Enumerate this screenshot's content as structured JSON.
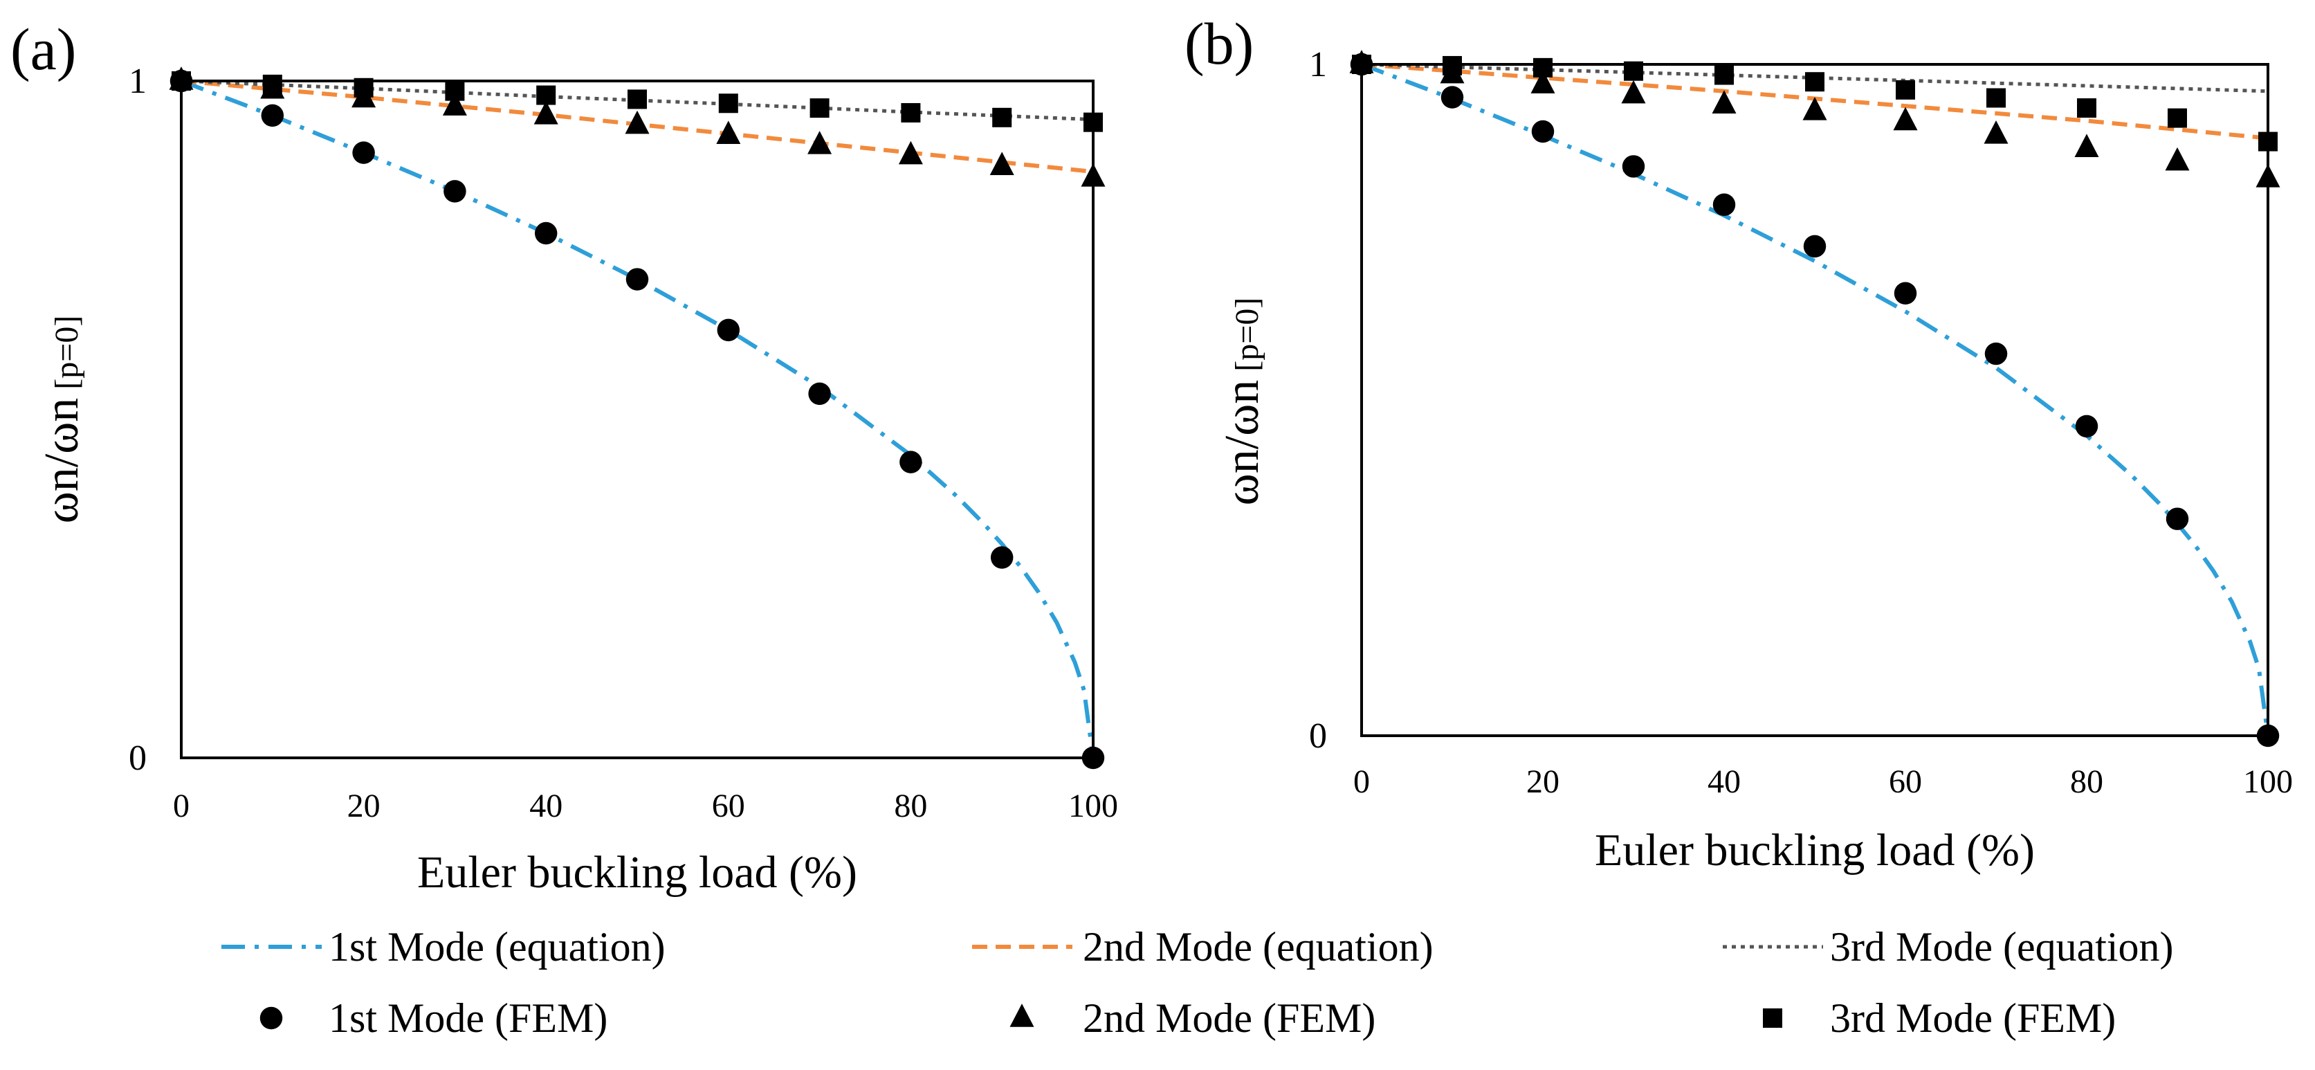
{
  "chart_data": [
    {
      "panel_label": "(a)",
      "type": "line",
      "xlabel": "Euler buckling load (%)",
      "ylabel": {
        "main": "ωn/ωn",
        "sub": "[p=0]"
      },
      "xlim": [
        0,
        100
      ],
      "ylim": [
        0,
        1
      ],
      "xticks": [
        0,
        20,
        40,
        60,
        80,
        100
      ],
      "yticks": [
        0,
        1
      ],
      "lines": [
        {
          "name": "1st Mode (equation)",
          "color": "#2e9fd8",
          "dash": "dashdot",
          "x": [
            0,
            10,
            20,
            30,
            40,
            50,
            60,
            70,
            80,
            85,
            88,
            90,
            92,
            94,
            96,
            98,
            99,
            100
          ],
          "y": [
            1,
            0.949,
            0.894,
            0.837,
            0.775,
            0.707,
            0.632,
            0.548,
            0.447,
            0.387,
            0.346,
            0.316,
            0.283,
            0.245,
            0.2,
            0.141,
            0.1,
            0
          ]
        },
        {
          "name": "2nd Mode (equation)",
          "color": "#f28a3c",
          "dash": "dashed",
          "x": [
            0,
            20,
            40,
            60,
            80,
            100
          ],
          "y": [
            1,
            0.976,
            0.95,
            0.922,
            0.894,
            0.866
          ]
        },
        {
          "name": "3rd Mode (equation)",
          "color": "#555555",
          "dash": "dotted",
          "x": [
            0,
            20,
            40,
            60,
            80,
            100
          ],
          "y": [
            1,
            0.989,
            0.977,
            0.966,
            0.954,
            0.943
          ]
        }
      ],
      "points": [
        {
          "name": "1st Mode (FEM)",
          "marker": "circle",
          "x": [
            0,
            10,
            20,
            30,
            40,
            50,
            60,
            70,
            80,
            90,
            100
          ],
          "y": [
            1,
            0.949,
            0.894,
            0.837,
            0.775,
            0.707,
            0.632,
            0.538,
            0.437,
            0.296,
            0
          ]
        },
        {
          "name": "2nd Mode (FEM)",
          "marker": "triangle",
          "x": [
            0,
            10,
            20,
            30,
            40,
            50,
            60,
            70,
            80,
            90,
            100
          ],
          "y": [
            1,
            0.987,
            0.974,
            0.962,
            0.949,
            0.935,
            0.92,
            0.905,
            0.89,
            0.874,
            0.857
          ]
        },
        {
          "name": "3rd Mode (FEM)",
          "marker": "square",
          "x": [
            0,
            10,
            20,
            30,
            40,
            50,
            60,
            70,
            80,
            90,
            100
          ],
          "y": [
            1,
            0.995,
            0.99,
            0.985,
            0.979,
            0.973,
            0.967,
            0.96,
            0.953,
            0.946,
            0.939
          ]
        }
      ]
    },
    {
      "panel_label": "(b)",
      "type": "line",
      "xlabel": "Euler buckling load (%)",
      "ylabel": {
        "main": "ωn/ωn",
        "sub": "[p=0]"
      },
      "xlim": [
        0,
        100
      ],
      "ylim": [
        0,
        1
      ],
      "xticks": [
        0,
        20,
        40,
        60,
        80,
        100
      ],
      "yticks": [
        0,
        1
      ],
      "lines": [
        {
          "name": "1st Mode (equation)",
          "color": "#2e9fd8",
          "dash": "dashdot",
          "x": [
            0,
            10,
            20,
            30,
            40,
            50,
            60,
            70,
            80,
            85,
            88,
            90,
            92,
            94,
            96,
            98,
            99,
            100
          ],
          "y": [
            1,
            0.949,
            0.894,
            0.837,
            0.775,
            0.707,
            0.632,
            0.548,
            0.447,
            0.387,
            0.346,
            0.316,
            0.283,
            0.245,
            0.2,
            0.141,
            0.1,
            0
          ]
        },
        {
          "name": "2nd Mode (equation)",
          "color": "#f28a3c",
          "dash": "dashed",
          "x": [
            0,
            20,
            40,
            60,
            80,
            100
          ],
          "y": [
            1,
            0.98,
            0.96,
            0.938,
            0.916,
            0.89
          ]
        },
        {
          "name": "3rd Mode (equation)",
          "color": "#555555",
          "dash": "dotted",
          "x": [
            0,
            20,
            40,
            60,
            80,
            100
          ],
          "y": [
            1,
            0.992,
            0.984,
            0.976,
            0.968,
            0.96
          ]
        }
      ],
      "points": [
        {
          "name": "1st Mode (FEM)",
          "marker": "circle",
          "x": [
            0,
            10,
            20,
            30,
            40,
            50,
            60,
            70,
            80,
            90,
            100
          ],
          "y": [
            1,
            0.951,
            0.9,
            0.848,
            0.791,
            0.729,
            0.659,
            0.569,
            0.461,
            0.323,
            0
          ]
        },
        {
          "name": "2nd Mode (FEM)",
          "marker": "triangle",
          "x": [
            0,
            10,
            20,
            30,
            40,
            50,
            60,
            70,
            80,
            90,
            100
          ],
          "y": [
            1,
            0.985,
            0.97,
            0.955,
            0.94,
            0.93,
            0.915,
            0.895,
            0.875,
            0.855,
            0.83
          ]
        },
        {
          "name": "3rd Mode (FEM)",
          "marker": "square",
          "x": [
            0,
            10,
            20,
            30,
            40,
            50,
            60,
            70,
            80,
            90,
            100
          ],
          "y": [
            1,
            0.998,
            0.995,
            0.99,
            0.984,
            0.974,
            0.962,
            0.95,
            0.935,
            0.92,
            0.885
          ]
        }
      ]
    }
  ],
  "legend": {
    "items": [
      {
        "label": "1st Mode (equation)",
        "kind": "line",
        "color": "#2e9fd8",
        "dash": "dashdot"
      },
      {
        "label": "2nd Mode (equation)",
        "kind": "line",
        "color": "#f28a3c",
        "dash": "dashed"
      },
      {
        "label": "3rd Mode (equation)",
        "kind": "line",
        "color": "#555555",
        "dash": "dotted"
      },
      {
        "label": "1st Mode (FEM)",
        "kind": "marker",
        "marker": "circle"
      },
      {
        "label": "2nd Mode (FEM)",
        "kind": "marker",
        "marker": "triangle"
      },
      {
        "label": "3rd Mode (FEM)",
        "kind": "marker",
        "marker": "square"
      }
    ]
  }
}
